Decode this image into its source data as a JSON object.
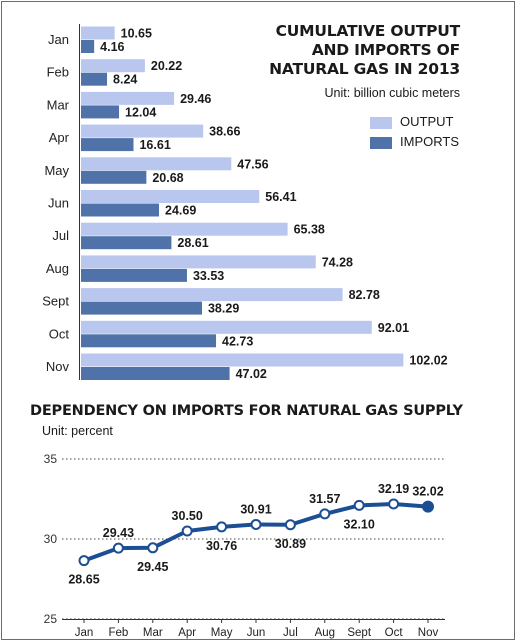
{
  "colors": {
    "output": "#b9c7ef",
    "imports": "#4f73a9",
    "line": "#1c4e94"
  },
  "chart_data": [
    {
      "type": "bar",
      "title": "CUMULATIVE OUTPUT AND IMPORTS OF NATURAL GAS IN 2013",
      "title_lines": [
        "CUMULATIVE OUTPUT",
        "AND IMPORTS OF",
        "NATURAL GAS IN 2013"
      ],
      "unit": "Unit: billion cubic meters",
      "orientation": "horizontal",
      "categories": [
        "Jan",
        "Feb",
        "Mar",
        "Apr",
        "May",
        "Jun",
        "Jul",
        "Aug",
        "Sept",
        "Oct",
        "Nov"
      ],
      "series": [
        {
          "name": "OUTPUT",
          "values": [
            10.65,
            20.22,
            29.46,
            38.66,
            47.56,
            56.41,
            65.38,
            74.28,
            82.78,
            92.01,
            102.02
          ]
        },
        {
          "name": "IMPORTS",
          "values": [
            4.16,
            8.24,
            12.04,
            16.61,
            20.68,
            24.69,
            28.61,
            33.53,
            38.29,
            42.73,
            47.02
          ]
        }
      ],
      "legend_position": "right"
    },
    {
      "type": "line",
      "title": "DEPENDENCY ON IMPORTS FOR NATURAL GAS SUPPLY",
      "unit": "Unit: percent",
      "categories": [
        "Jan",
        "Feb",
        "Mar",
        "Apr",
        "May",
        "Jun",
        "Jul",
        "Aug",
        "Sept",
        "Oct",
        "Nov"
      ],
      "values": [
        28.65,
        29.43,
        29.45,
        30.5,
        30.76,
        30.91,
        30.89,
        31.57,
        32.1,
        32.19,
        32.02
      ],
      "value_labels": [
        "28.65",
        "29.43",
        "29.45",
        "30.50",
        "30.76",
        "30.91",
        "30.89",
        "31.57",
        "32.10",
        "32.19",
        "32.02"
      ],
      "ylim": [
        25,
        35
      ],
      "yticks": [
        25,
        30,
        35
      ],
      "grid": "dashed horizontal"
    }
  ]
}
